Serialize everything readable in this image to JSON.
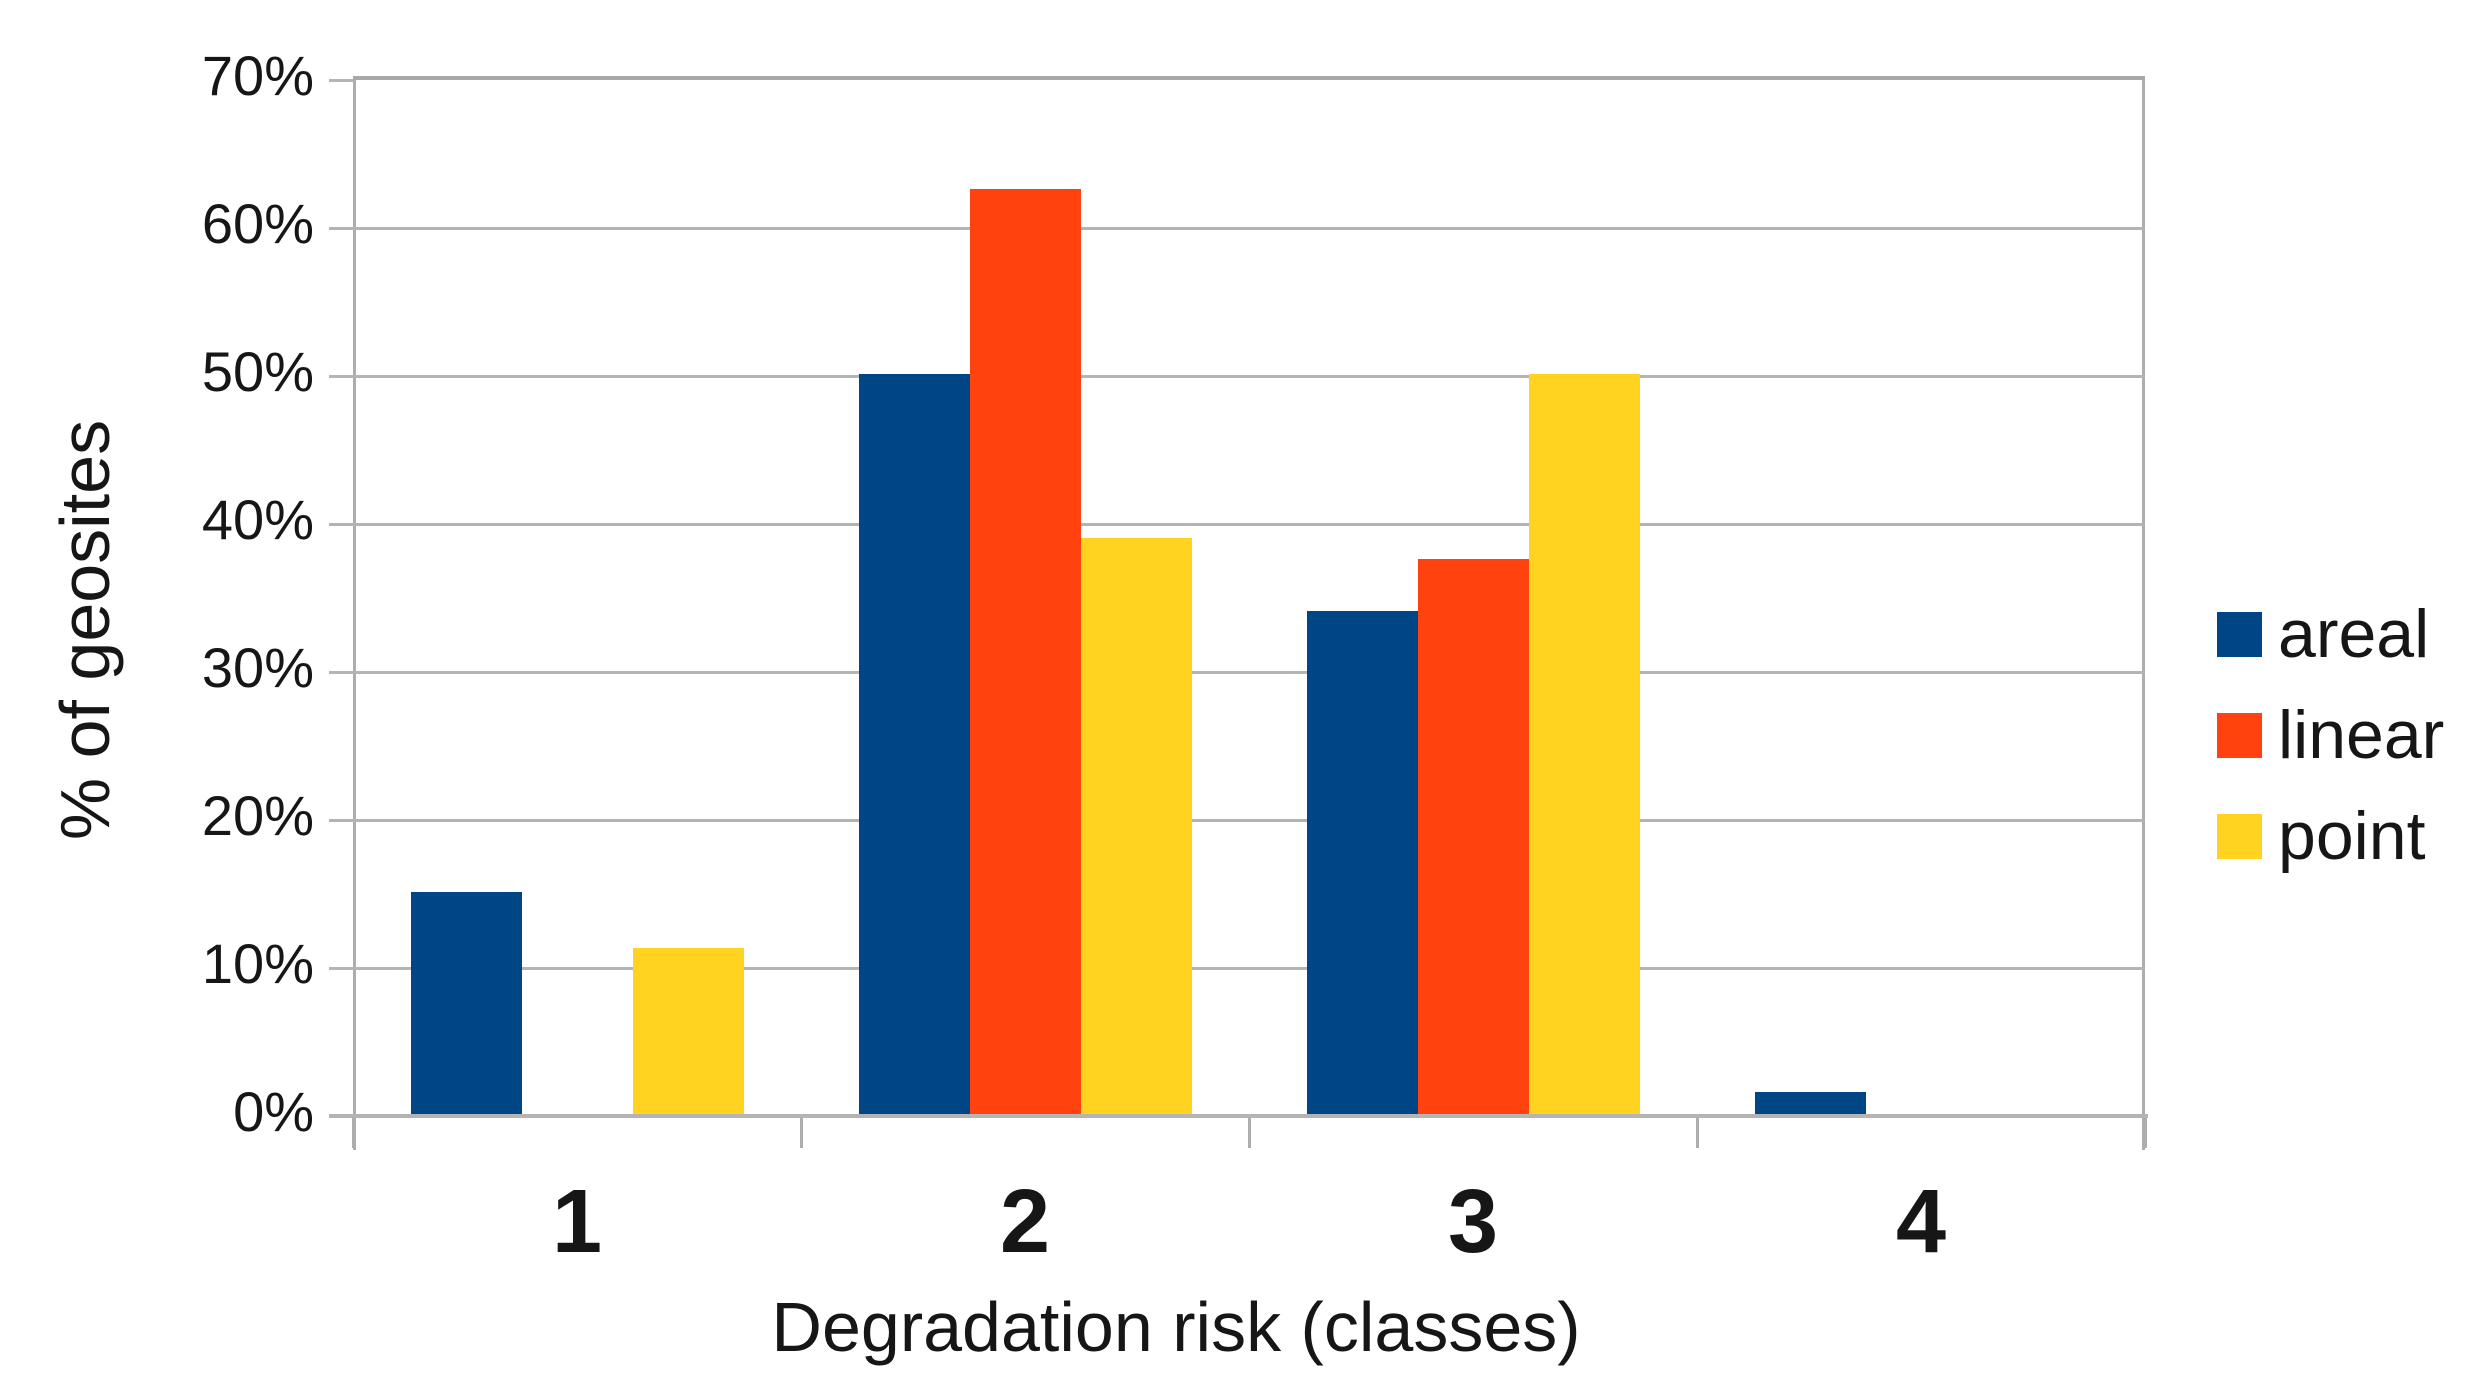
{
  "chart_data": {
    "type": "bar",
    "title": "",
    "categories": [
      "1",
      "2",
      "3",
      "4"
    ],
    "series": [
      {
        "name": "areal",
        "color": "#004586",
        "values": [
          15,
          50,
          34,
          1.5
        ]
      },
      {
        "name": "linear",
        "color": "#FF420E",
        "values": [
          0,
          62.5,
          37.5,
          0
        ]
      },
      {
        "name": "point",
        "color": "#FFD320",
        "values": [
          11.2,
          38.9,
          50,
          0
        ]
      }
    ],
    "xlabel": "Degradation risk (classes)",
    "ylabel": "% of geosites",
    "ylim": [
      0,
      70
    ],
    "ytick_step": 10,
    "ytick_labels": [
      "0%",
      "10%",
      "20%",
      "30%",
      "40%",
      "50%",
      "60%",
      "70%"
    ],
    "grid": "horizontal",
    "legend_position": "right"
  },
  "colors": {
    "background": "#ffffff",
    "gridline": "#b4b4b4",
    "axis": "#adadad",
    "text": "#161616"
  }
}
